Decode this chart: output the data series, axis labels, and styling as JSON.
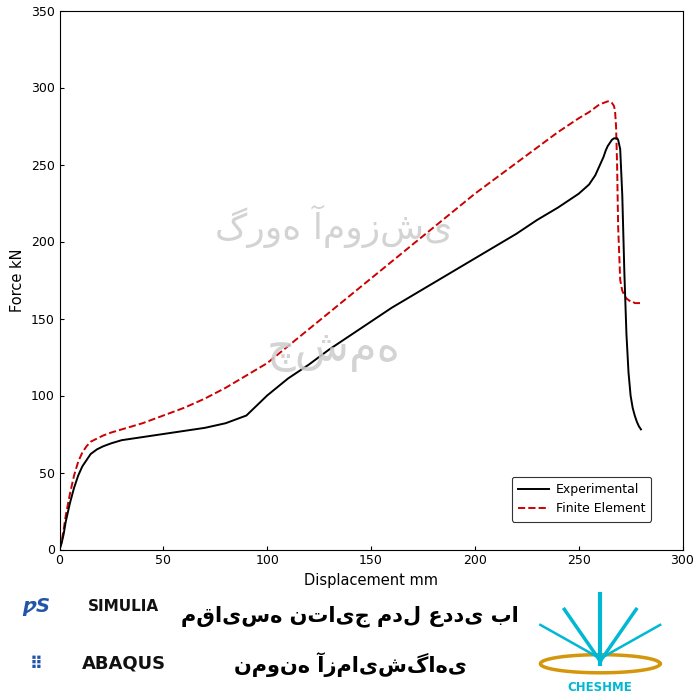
{
  "xlabel": "Displacement mm",
  "ylabel": "Force kN",
  "xlim": [
    0,
    300
  ],
  "ylim": [
    0,
    350
  ],
  "xticks": [
    0,
    50,
    100,
    150,
    200,
    250,
    300
  ],
  "yticks": [
    0,
    50,
    100,
    150,
    200,
    250,
    300,
    350
  ],
  "legend_labels": [
    "Experimental",
    "Finite Element"
  ],
  "exp_color": "#000000",
  "fe_color": "#cc0000",
  "background_color": "#ffffff",
  "simulia_text": "SIMULIA",
  "abaqus_text": "ABAQUS",
  "persian_title_line1": "مقایسه نتایج مدل عددی با",
  "persian_title_line2": "نمونه آزمایشگاهی",
  "cheshme_text": "CHESHME",
  "watermark1": "گروه آموزشی",
  "watermark2": "چشمه",
  "exp_x": [
    0,
    1,
    2,
    3,
    5,
    7,
    9,
    11,
    13,
    15,
    18,
    21,
    25,
    30,
    35,
    40,
    50,
    60,
    70,
    80,
    90,
    100,
    110,
    120,
    130,
    140,
    150,
    160,
    170,
    180,
    190,
    200,
    210,
    220,
    230,
    240,
    250,
    255,
    258,
    260,
    262,
    263,
    264,
    265,
    266,
    267,
    268,
    268.5,
    269,
    270,
    271,
    272,
    273,
    274,
    275,
    276,
    277,
    278,
    279,
    280
  ],
  "exp_y": [
    0,
    4,
    10,
    18,
    30,
    40,
    48,
    54,
    58,
    62,
    65,
    67,
    69,
    71,
    72,
    73,
    75,
    77,
    79,
    82,
    87,
    100,
    111,
    120,
    130,
    139,
    148,
    157,
    165,
    173,
    181,
    189,
    197,
    205,
    214,
    222,
    231,
    237,
    243,
    249,
    255,
    259,
    262,
    264,
    266,
    267,
    267,
    267,
    266,
    260,
    230,
    180,
    140,
    115,
    100,
    92,
    87,
    83,
    80,
    78
  ],
  "fe_x": [
    0,
    1,
    2,
    3,
    5,
    7,
    9,
    11,
    13,
    15,
    18,
    21,
    25,
    30,
    35,
    40,
    50,
    60,
    70,
    80,
    90,
    100,
    110,
    120,
    130,
    140,
    150,
    160,
    170,
    180,
    190,
    200,
    210,
    220,
    230,
    240,
    250,
    255,
    258,
    260,
    262,
    264,
    265,
    266,
    267,
    267.5,
    268,
    268.5,
    269,
    270,
    271,
    272,
    273,
    274,
    275,
    276,
    277,
    278,
    279,
    280
  ],
  "fe_y": [
    0,
    5,
    13,
    22,
    36,
    48,
    57,
    63,
    67,
    70,
    72,
    74,
    76,
    78,
    80,
    82,
    87,
    92,
    98,
    105,
    113,
    121,
    132,
    143,
    154,
    165,
    176,
    187,
    198,
    209,
    220,
    231,
    241,
    251,
    261,
    271,
    280,
    284,
    287,
    289,
    290,
    291,
    291,
    290,
    288,
    285,
    275,
    250,
    210,
    175,
    168,
    165,
    163,
    162,
    161,
    161,
    160,
    160,
    160,
    160
  ]
}
